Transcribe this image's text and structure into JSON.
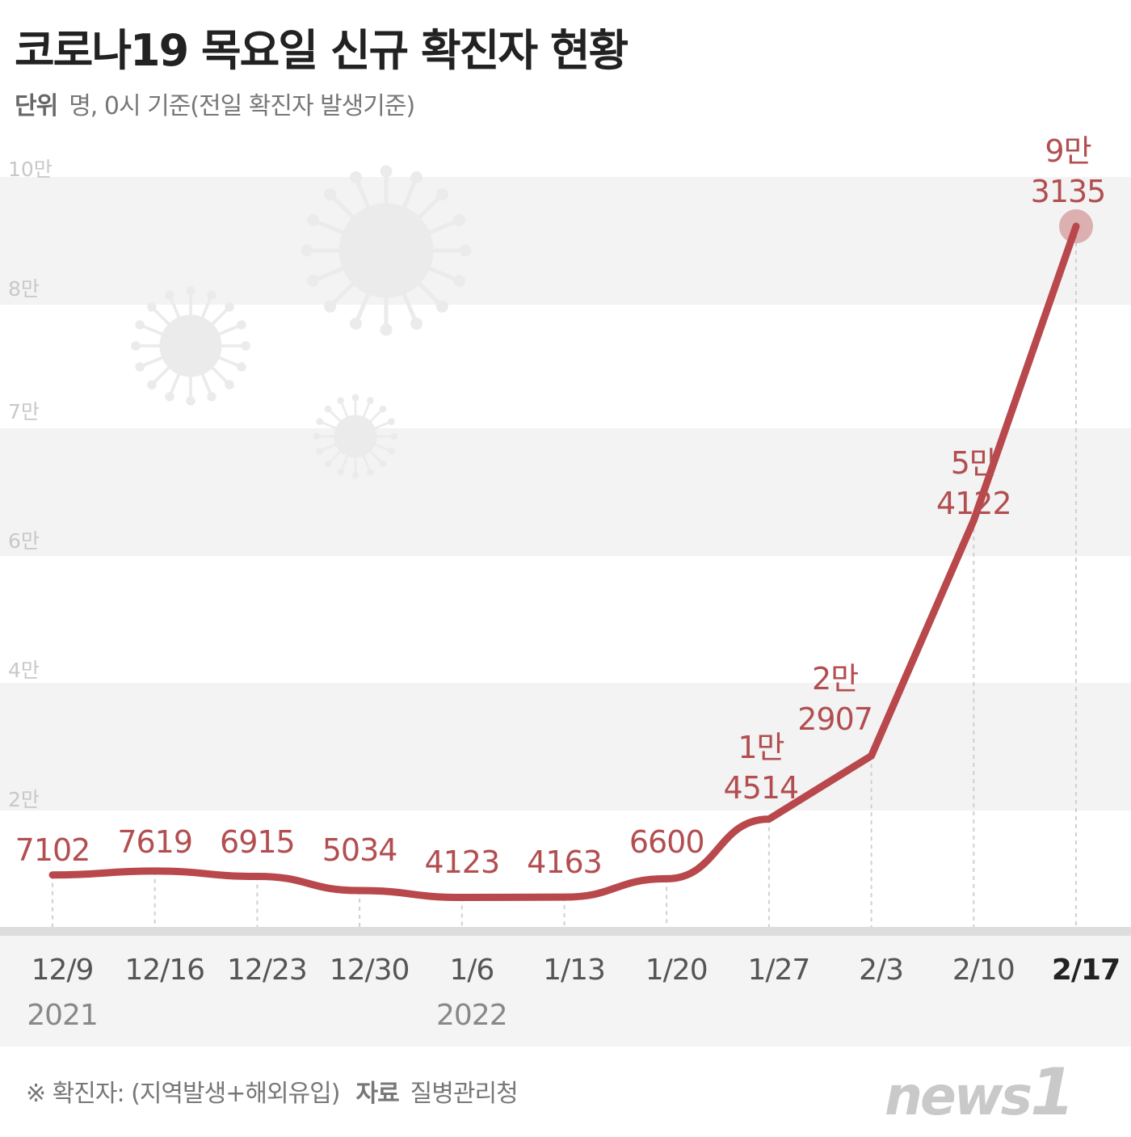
{
  "title": "코로나19 목요일 신규 확진자 현황",
  "unit_label": "단위",
  "unit_text": "명, 0시 기준(전일 확진자 발생기준)",
  "footnote": "※ 확진자: (지역발생+해외유입)",
  "source_label": "자료",
  "source": "질병관리청",
  "logo": "news1",
  "colors": {
    "line": "#b8484b",
    "label": "#b24e50",
    "band": "#f3f3f3"
  },
  "chart_data": {
    "type": "line",
    "title": "코로나19 목요일 신규 확진자 현황",
    "ylabel": "명",
    "yticks": [
      "10만",
      "8만",
      "7만",
      "6만",
      "4만",
      "2만"
    ],
    "ylim": [
      0,
      100000
    ],
    "grid": "alternating bands",
    "categories": [
      "12/9",
      "12/16",
      "12/23",
      "12/30",
      "1/6",
      "1/13",
      "1/20",
      "1/27",
      "2/3",
      "2/10",
      "2/17"
    ],
    "years": [
      {
        "label": "2021",
        "at": "12/9"
      },
      {
        "label": "2022",
        "at": "1/6"
      }
    ],
    "values": [
      7102,
      7619,
      6915,
      5034,
      4123,
      4163,
      6600,
      14514,
      22907,
      54122,
      93135
    ],
    "data_labels": [
      [
        "7102"
      ],
      [
        "7619"
      ],
      [
        "6915"
      ],
      [
        "5034"
      ],
      [
        "4123"
      ],
      [
        "4163"
      ],
      [
        "6600"
      ],
      [
        "1만",
        "4514"
      ],
      [
        "2만",
        "2907"
      ],
      [
        "5만",
        "4122"
      ],
      [
        "9만",
        "3135"
      ]
    ],
    "highlight": "2/17"
  }
}
